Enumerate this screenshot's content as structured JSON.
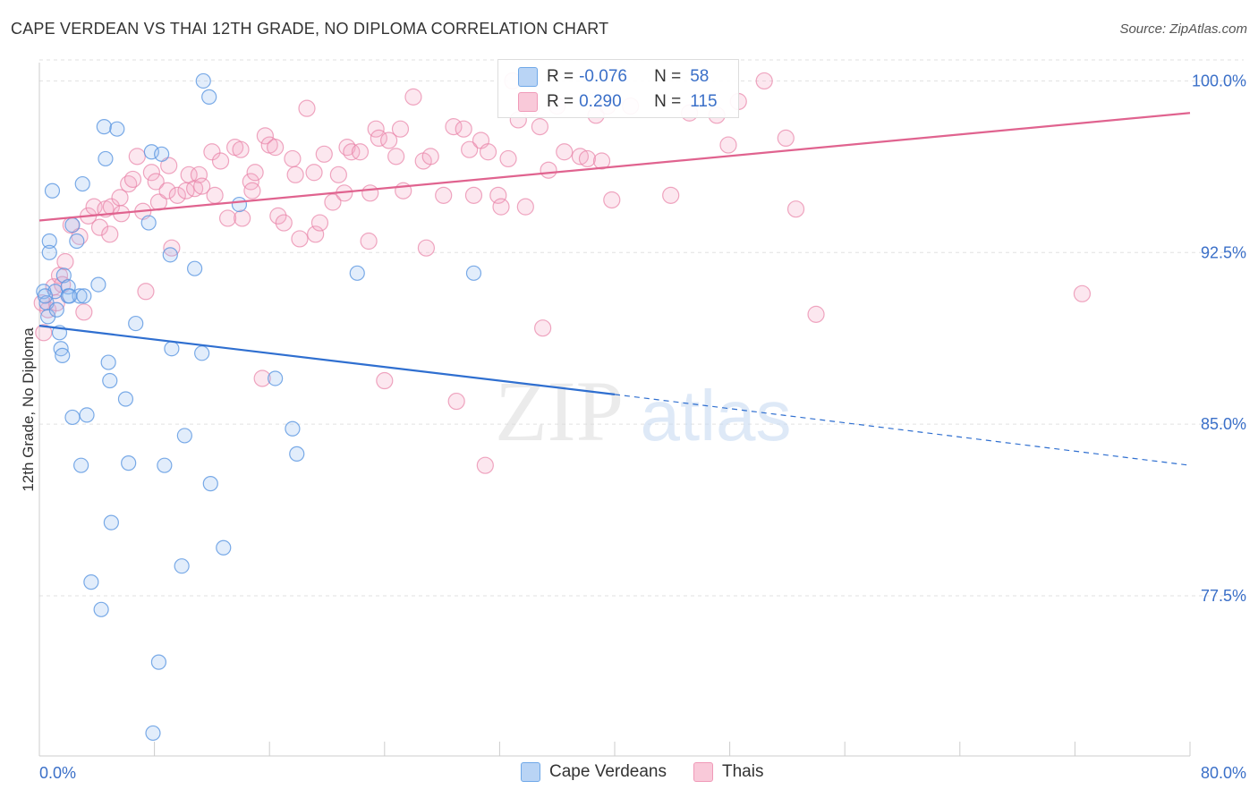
{
  "title": "CAPE VERDEAN VS THAI 12TH GRADE, NO DIPLOMA CORRELATION CHART",
  "source": "Source: ZipAtlas.com",
  "watermark": {
    "zip": "ZIP",
    "atlas": "atlas"
  },
  "legend": {
    "r_label": "R =",
    "n_label": "N =",
    "cape": {
      "r": "-0.076",
      "n": "58"
    },
    "thai": {
      "r": "0.290",
      "n": "115"
    }
  },
  "bottom_legend": {
    "cape": "Cape Verdeans",
    "thai": "Thais"
  },
  "chart_data": {
    "type": "scatter",
    "title": "CAPE VERDEAN VS THAI 12TH GRADE, NO DIPLOMA CORRELATION CHART",
    "xlabel": "",
    "ylabel": "12th Grade, No Diploma",
    "xlim": [
      0,
      80
    ],
    "ylim": [
      70.5,
      100.8
    ],
    "x_tick_labels": [
      "0.0%",
      "80.0%"
    ],
    "y_ticks": [
      77.5,
      85.0,
      92.5,
      100.0
    ],
    "y_tick_labels": [
      "77.5%",
      "85.0%",
      "92.5%",
      "100.0%"
    ],
    "grid": true,
    "legend_position": "top-center",
    "colors": {
      "cape": "#6fa8e8",
      "cape_line": "#2f6fd0",
      "thai": "#f09ab8",
      "thai_line": "#e0638f",
      "tick_text": "#3a6fc8"
    },
    "series": [
      {
        "name": "Cape Verdeans",
        "r": -0.076,
        "n": 58,
        "trend": {
          "x0": 0,
          "y0": 89.3,
          "x1": 40,
          "y1": 86.3,
          "dash_x1": 80,
          "dash_y1": 83.2
        },
        "points": [
          [
            0.3,
            90.8
          ],
          [
            0.5,
            90.3
          ],
          [
            0.6,
            89.7
          ],
          [
            0.7,
            93.0
          ],
          [
            0.7,
            92.5
          ],
          [
            0.9,
            95.2
          ],
          [
            1.1,
            90.8
          ],
          [
            1.2,
            90.0
          ],
          [
            1.4,
            89.0
          ],
          [
            1.5,
            88.3
          ],
          [
            1.6,
            88.0
          ],
          [
            1.7,
            91.5
          ],
          [
            2.0,
            91.0
          ],
          [
            2.0,
            90.6
          ],
          [
            2.3,
            93.7
          ],
          [
            2.3,
            85.3
          ],
          [
            2.6,
            93.0
          ],
          [
            2.8,
            90.6
          ],
          [
            2.9,
            83.2
          ],
          [
            3.0,
            95.5
          ],
          [
            3.1,
            90.6
          ],
          [
            3.3,
            85.4
          ],
          [
            3.6,
            78.1
          ],
          [
            4.1,
            91.1
          ],
          [
            4.3,
            76.9
          ],
          [
            4.5,
            98.0
          ],
          [
            4.6,
            96.6
          ],
          [
            4.8,
            87.7
          ],
          [
            4.9,
            86.9
          ],
          [
            5.0,
            80.7
          ],
          [
            5.4,
            97.9
          ],
          [
            6.0,
            86.1
          ],
          [
            6.2,
            83.3
          ],
          [
            6.7,
            89.4
          ],
          [
            7.6,
            93.8
          ],
          [
            7.8,
            96.9
          ],
          [
            7.9,
            71.5
          ],
          [
            8.3,
            74.6
          ],
          [
            8.5,
            96.8
          ],
          [
            8.7,
            83.2
          ],
          [
            9.1,
            92.4
          ],
          [
            9.2,
            88.3
          ],
          [
            9.9,
            78.8
          ],
          [
            10.1,
            84.5
          ],
          [
            10.8,
            91.8
          ],
          [
            11.3,
            88.1
          ],
          [
            11.4,
            100.0
          ],
          [
            11.8,
            99.3
          ],
          [
            11.9,
            82.4
          ],
          [
            12.8,
            79.6
          ],
          [
            13.9,
            94.6
          ],
          [
            16.4,
            87.0
          ],
          [
            17.6,
            84.8
          ],
          [
            17.9,
            83.7
          ],
          [
            22.1,
            91.6
          ],
          [
            30.2,
            91.6
          ],
          [
            0.4,
            90.6
          ],
          [
            2.1,
            90.6
          ]
        ]
      },
      {
        "name": "Thais",
        "r": 0.29,
        "n": 115,
        "trend": {
          "x0": 0,
          "y0": 93.9,
          "x1": 80,
          "y1": 98.6
        },
        "points": [
          [
            0.3,
            89.0
          ],
          [
            0.6,
            90.0
          ],
          [
            1.0,
            91.0
          ],
          [
            1.2,
            90.3
          ],
          [
            1.4,
            91.5
          ],
          [
            1.8,
            92.1
          ],
          [
            2.2,
            93.7
          ],
          [
            2.8,
            93.2
          ],
          [
            3.1,
            89.9
          ],
          [
            3.4,
            94.1
          ],
          [
            3.8,
            94.5
          ],
          [
            4.2,
            93.6
          ],
          [
            4.6,
            94.4
          ],
          [
            4.9,
            93.3
          ],
          [
            5.0,
            94.5
          ],
          [
            5.6,
            94.9
          ],
          [
            5.7,
            94.2
          ],
          [
            6.2,
            95.5
          ],
          [
            6.5,
            95.7
          ],
          [
            6.8,
            96.7
          ],
          [
            7.2,
            94.3
          ],
          [
            7.4,
            90.8
          ],
          [
            7.8,
            96.0
          ],
          [
            8.1,
            95.6
          ],
          [
            8.3,
            94.7
          ],
          [
            8.9,
            95.2
          ],
          [
            9.0,
            96.3
          ],
          [
            9.2,
            92.7
          ],
          [
            9.6,
            95.0
          ],
          [
            10.2,
            95.2
          ],
          [
            10.4,
            95.9
          ],
          [
            10.8,
            95.3
          ],
          [
            11.1,
            95.9
          ],
          [
            11.3,
            95.4
          ],
          [
            12.0,
            96.9
          ],
          [
            12.2,
            95.0
          ],
          [
            12.6,
            96.5
          ],
          [
            13.1,
            94.0
          ],
          [
            13.6,
            97.1
          ],
          [
            14.0,
            97.0
          ],
          [
            14.1,
            94.0
          ],
          [
            14.7,
            95.6
          ],
          [
            14.8,
            95.2
          ],
          [
            15.0,
            96.0
          ],
          [
            15.5,
            87.0
          ],
          [
            15.7,
            97.6
          ],
          [
            16.0,
            97.2
          ],
          [
            16.4,
            97.1
          ],
          [
            16.6,
            94.1
          ],
          [
            17.0,
            93.8
          ],
          [
            17.6,
            96.6
          ],
          [
            17.8,
            95.9
          ],
          [
            18.1,
            93.1
          ],
          [
            18.6,
            98.8
          ],
          [
            19.1,
            96.0
          ],
          [
            19.2,
            93.3
          ],
          [
            19.5,
            93.8
          ],
          [
            19.8,
            96.8
          ],
          [
            20.4,
            94.7
          ],
          [
            20.8,
            95.9
          ],
          [
            21.2,
            95.1
          ],
          [
            21.4,
            97.1
          ],
          [
            21.7,
            96.9
          ],
          [
            22.3,
            96.9
          ],
          [
            22.9,
            93.0
          ],
          [
            23.0,
            95.1
          ],
          [
            23.4,
            97.9
          ],
          [
            23.6,
            97.5
          ],
          [
            24.0,
            86.9
          ],
          [
            24.3,
            97.4
          ],
          [
            24.8,
            96.7
          ],
          [
            25.1,
            97.9
          ],
          [
            25.3,
            95.2
          ],
          [
            26.0,
            99.3
          ],
          [
            26.7,
            96.5
          ],
          [
            26.9,
            92.7
          ],
          [
            27.2,
            96.7
          ],
          [
            28.1,
            95.0
          ],
          [
            28.8,
            98.0
          ],
          [
            29.0,
            86.0
          ],
          [
            29.5,
            97.9
          ],
          [
            29.9,
            97.0
          ],
          [
            30.2,
            95.0
          ],
          [
            30.7,
            97.4
          ],
          [
            31.0,
            83.2
          ],
          [
            31.2,
            96.9
          ],
          [
            31.9,
            95.0
          ],
          [
            32.1,
            94.5
          ],
          [
            32.6,
            96.6
          ],
          [
            32.9,
            100.0
          ],
          [
            33.3,
            98.3
          ],
          [
            33.8,
            94.5
          ],
          [
            34.2,
            98.8
          ],
          [
            34.8,
            98.0
          ],
          [
            35.0,
            89.2
          ],
          [
            35.4,
            96.1
          ],
          [
            36.0,
            98.9
          ],
          [
            36.5,
            96.9
          ],
          [
            37.6,
            96.7
          ],
          [
            38.1,
            96.6
          ],
          [
            38.7,
            98.5
          ],
          [
            39.1,
            96.5
          ],
          [
            39.5,
            98.9
          ],
          [
            39.8,
            94.8
          ],
          [
            41.1,
            98.9
          ],
          [
            43.9,
            95.0
          ],
          [
            45.2,
            98.6
          ],
          [
            47.1,
            98.5
          ],
          [
            47.9,
            97.2
          ],
          [
            48.6,
            99.1
          ],
          [
            50.4,
            100.0
          ],
          [
            51.9,
            97.5
          ],
          [
            52.6,
            94.4
          ],
          [
            54.0,
            89.8
          ],
          [
            72.5,
            90.7
          ],
          [
            0.2,
            90.3
          ],
          [
            1.6,
            91.1
          ]
        ]
      }
    ]
  }
}
